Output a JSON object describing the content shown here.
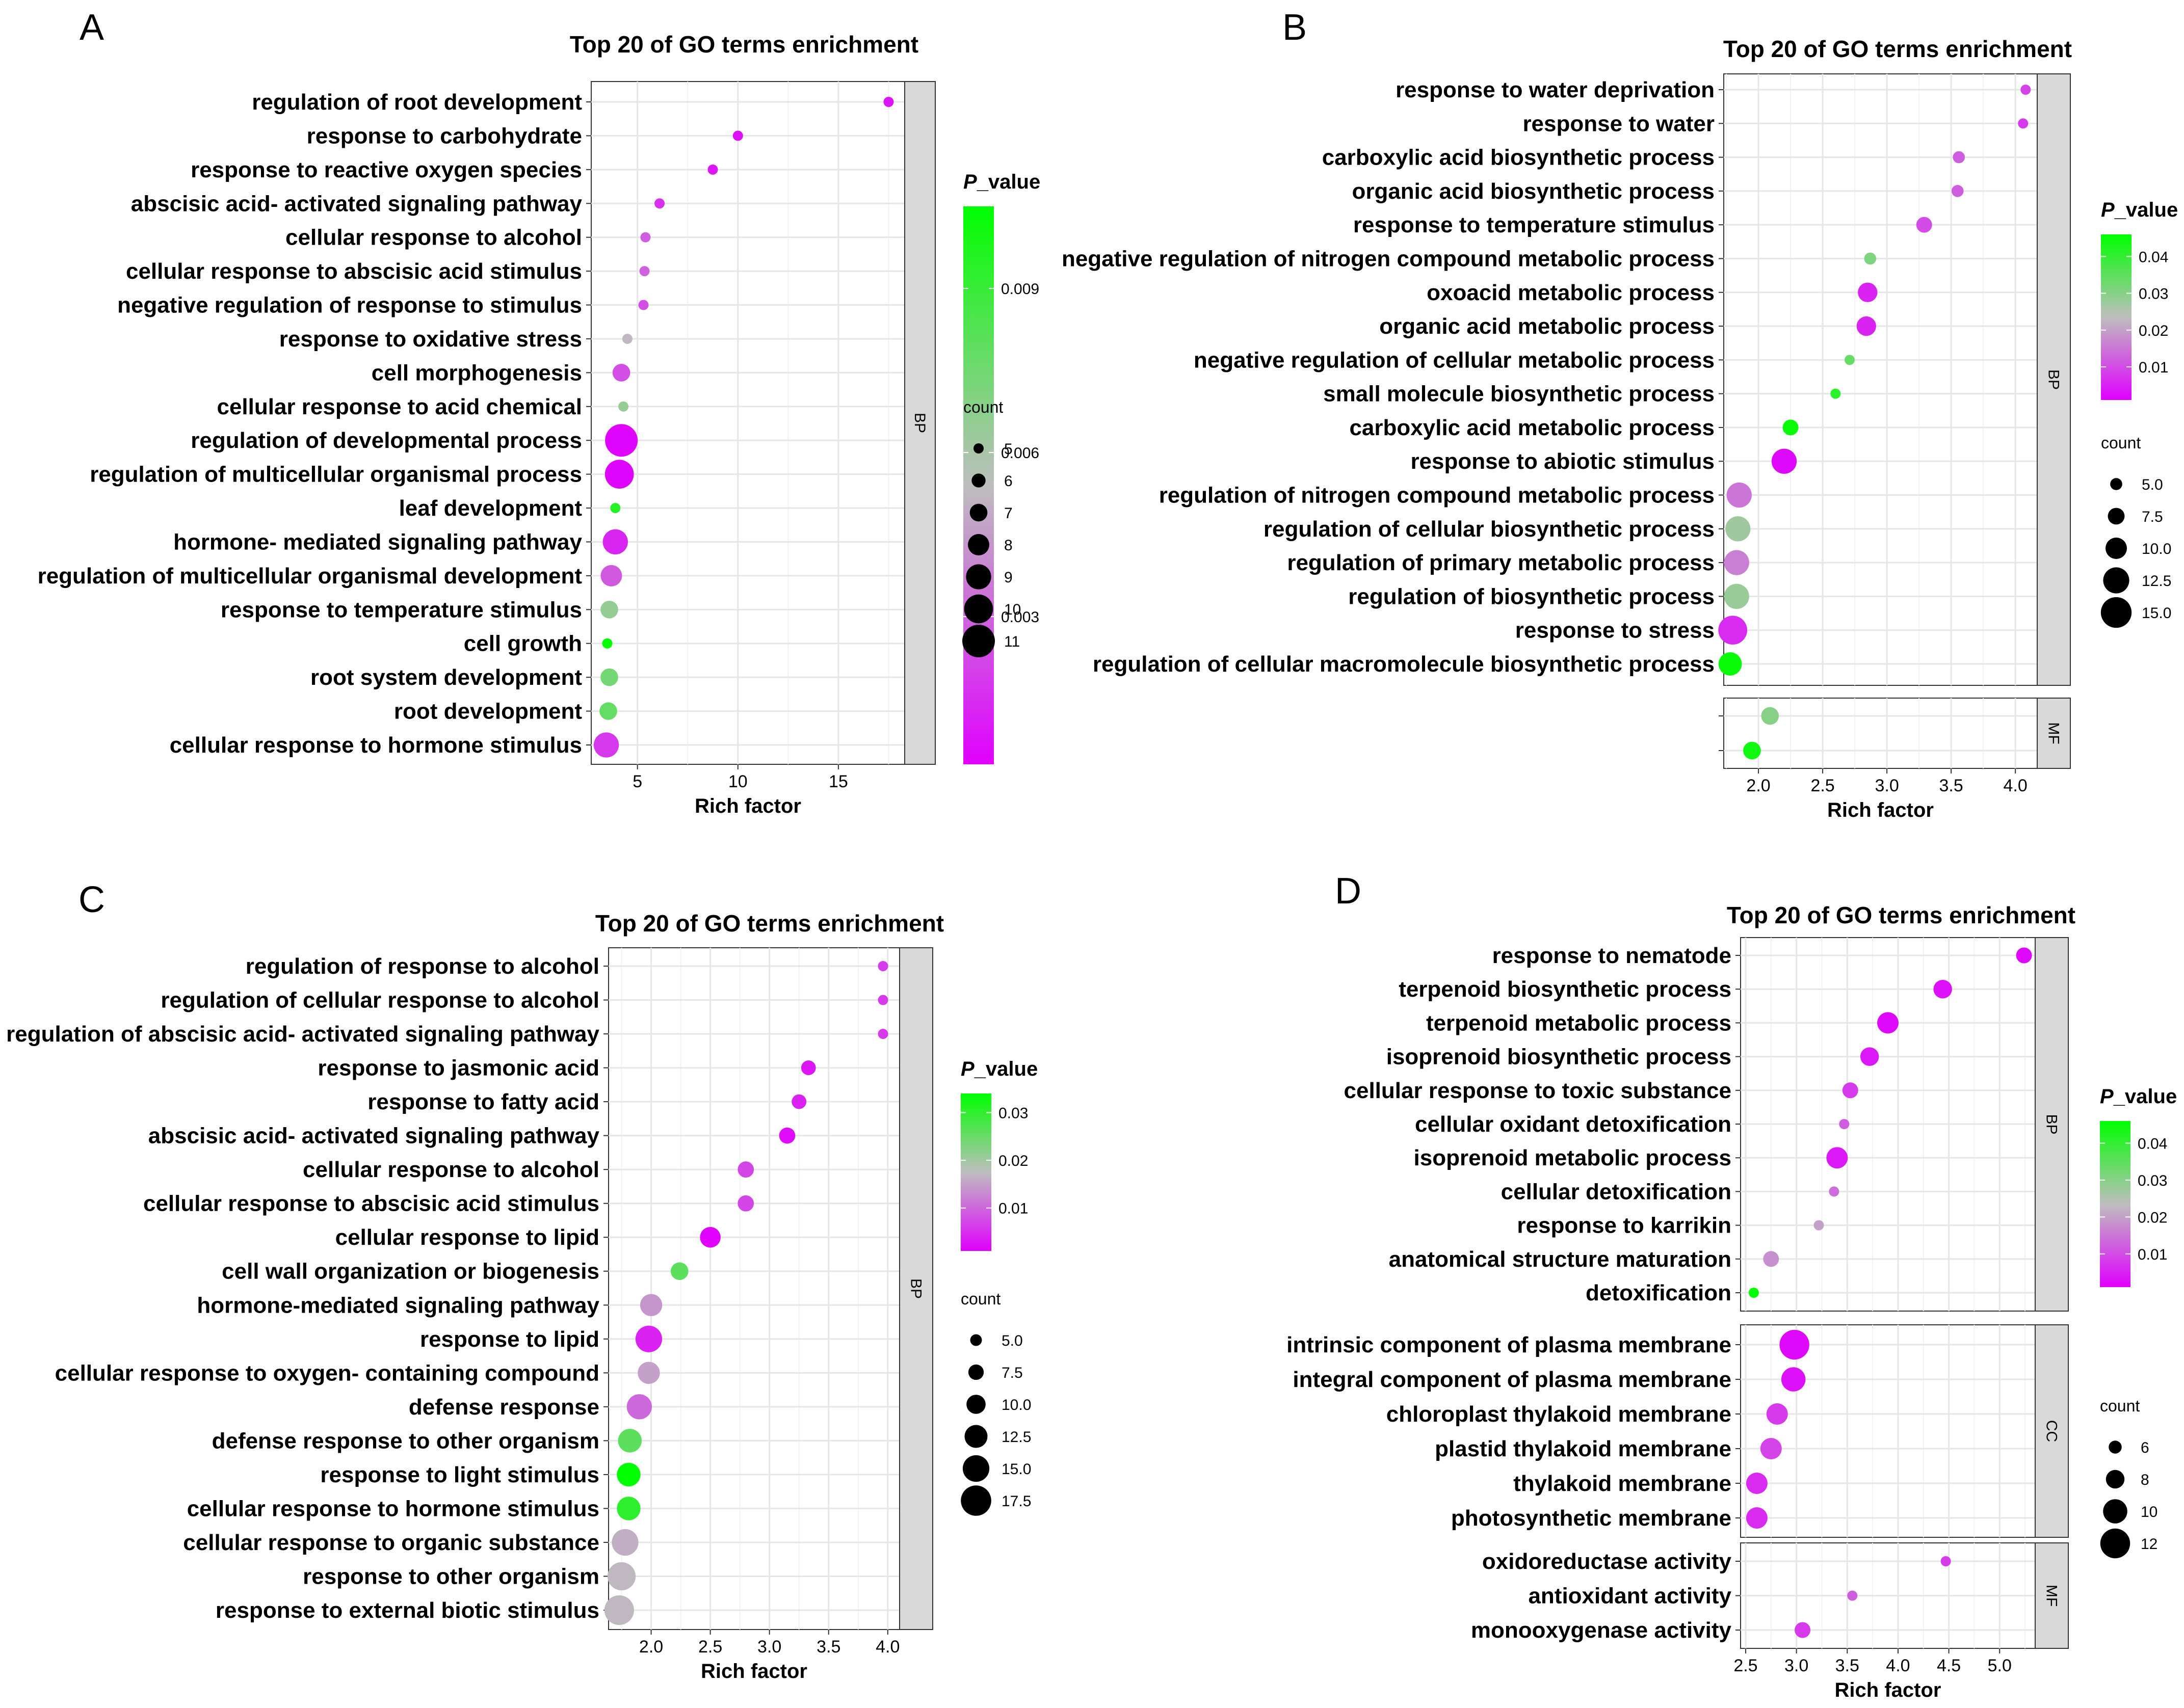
{
  "chart_data": [
    {
      "type": "scatter",
      "panel_label": "A",
      "title": "Top 20 of GO terms enrichment",
      "xlabel": "Rich factor",
      "xlim": [
        2.7,
        18.3
      ],
      "xticks": [
        "5",
        "10",
        "15"
      ],
      "color_legend": {
        "title_italic": "P",
        "title_rest": "_value",
        "ticks": [
          "0.009",
          "0.006",
          "0.003"
        ],
        "range": [
          0.0003,
          0.0105
        ],
        "tick_values": [
          0.009,
          0.006,
          0.003
        ]
      },
      "size_legend": {
        "title": "count",
        "ticks": [
          "5",
          "6",
          "7",
          "8",
          "9",
          "10",
          "11"
        ],
        "range": [
          5,
          11
        ]
      },
      "facets": [
        {
          "strip": "BP",
          "terms": [
            "regulation of root development",
            "response to carbohydrate",
            "response to reactive oxygen species",
            "abscisic acid- activated signaling pathway",
            "cellular response to alcohol",
            "cellular response to abscisic acid stimulus",
            "negative regulation of response to stimulus",
            "response to oxidative stress",
            "cell morphogenesis",
            "cellular response to acid chemical",
            "regulation of developmental process",
            "regulation of multicellular organismal process",
            "leaf development",
            "hormone- mediated signaling pathway",
            "regulation of multicellular organismal development",
            "response to temperature stimulus",
            "cell growth",
            "root system development",
            "root development",
            "cellular response to hormone stimulus"
          ],
          "rich_factor": [
            17.5,
            10.0,
            8.75,
            6.1,
            5.4,
            5.35,
            5.3,
            4.5,
            4.2,
            4.3,
            4.2,
            4.1,
            3.9,
            3.9,
            3.7,
            3.6,
            3.5,
            3.6,
            3.55,
            3.45
          ],
          "p_value": [
            0.0008,
            0.0007,
            0.0009,
            0.0016,
            0.0028,
            0.0029,
            0.0024,
            0.0052,
            0.0024,
            0.0065,
            0.0004,
            0.0004,
            0.0095,
            0.0013,
            0.0027,
            0.0065,
            0.0105,
            0.0074,
            0.0078,
            0.0018
          ],
          "count": [
            5,
            5,
            5,
            5,
            5,
            5,
            5,
            5,
            7,
            5,
            11,
            10,
            5,
            9,
            8,
            7,
            5,
            7,
            7,
            9
          ]
        }
      ]
    },
    {
      "type": "scatter",
      "panel_label": "B",
      "title": "Top 20 of GO terms enrichment",
      "xlabel": "Rich factor",
      "xlim": [
        1.73,
        4.17
      ],
      "xticks": [
        "2.0",
        "2.5",
        "3.0",
        "3.5",
        "4.0"
      ],
      "color_legend": {
        "title_italic": "P",
        "title_rest": "_value",
        "ticks": [
          "0.04",
          "0.03",
          "0.02",
          "0.01"
        ],
        "range": [
          0.001,
          0.046
        ],
        "tick_values": [
          0.04,
          0.03,
          0.02,
          0.01
        ]
      },
      "size_legend": {
        "title": "count",
        "ticks": [
          "5.0",
          "7.5",
          "10.0",
          "12.5",
          "15.0"
        ],
        "range": [
          4,
          16
        ]
      },
      "facets": [
        {
          "strip": "BP",
          "terms": [
            "response to water deprivation",
            "response to water",
            "carboxylic acid biosynthetic process",
            "organic acid biosynthetic process",
            "response to temperature stimulus",
            "negative regulation of nitrogen compound metabolic process",
            "oxoacid metabolic process",
            "organic acid metabolic process",
            "negative regulation of cellular metabolic process",
            "small molecule biosynthetic process",
            "carboxylic acid metabolic process",
            "response to abiotic stimulus",
            "regulation of nitrogen compound metabolic process",
            "regulation of cellular biosynthetic process",
            "regulation of primary metabolic process",
            "regulation of biosynthetic process",
            "response to stress",
            "regulation of cellular macromolecule biosynthetic process"
          ],
          "rich_factor": [
            4.08,
            4.06,
            3.56,
            3.55,
            3.29,
            2.87,
            2.85,
            2.84,
            2.71,
            2.6,
            2.25,
            2.2,
            1.85,
            1.84,
            1.83,
            1.83,
            1.8,
            1.78
          ],
          "p_value": [
            0.009,
            0.008,
            0.012,
            0.012,
            0.01,
            0.031,
            0.005,
            0.005,
            0.034,
            0.041,
            0.045,
            0.002,
            0.015,
            0.027,
            0.016,
            0.028,
            0.006,
            0.045
          ],
          "count": [
            4,
            4,
            5,
            5,
            7,
            5,
            9,
            9,
            4,
            4,
            7,
            12,
            12,
            12,
            12,
            12,
            14,
            11
          ]
        },
        {
          "strip": "MF",
          "terms": [
            "",
            ""
          ],
          "rich_factor": [
            2.09,
            1.95
          ],
          "p_value": [
            0.03,
            0.044
          ],
          "count": [
            8,
            8
          ]
        }
      ]
    },
    {
      "type": "scatter",
      "panel_label": "C",
      "title": "Top 20 of GO terms enrichment",
      "xlabel": "Rich factor",
      "xlim": [
        1.64,
        4.1
      ],
      "xticks": [
        "2.0",
        "2.5",
        "3.0",
        "3.5",
        "4.0"
      ],
      "color_legend": {
        "title_italic": "P",
        "title_rest": "_value",
        "ticks": [
          "0.03",
          "0.02",
          "0.01"
        ],
        "range": [
          0.001,
          0.034
        ],
        "tick_values": [
          0.03,
          0.02,
          0.01
        ]
      },
      "size_legend": {
        "title": "count",
        "ticks": [
          "5.0",
          "7.5",
          "10.0",
          "12.5",
          "15.0",
          "17.5"
        ],
        "range": [
          4,
          19
        ]
      },
      "facets": [
        {
          "strip": "BP",
          "terms": [
            "regulation of response to alcohol",
            "regulation of cellular response to alcohol",
            "regulation of abscisic acid- activated signaling pathway",
            "response to jasmonic acid",
            "response to fatty acid",
            "abscisic acid- activated signaling pathway",
            "cellular response to alcohol",
            "cellular response to abscisic acid stimulus",
            "cellular response to lipid",
            "cell wall organization or biogenesis",
            "hormone-mediated signaling pathway",
            "response to lipid",
            "cellular response to oxygen- containing compound",
            "defense response",
            "defense response to other organism",
            "response to light stimulus",
            "cellular response to hormone stimulus",
            "cellular response to organic substance",
            "response to other organism",
            "response to external biotic stimulus"
          ],
          "rich_factor": [
            3.96,
            3.96,
            3.96,
            3.33,
            3.25,
            3.15,
            2.8,
            2.8,
            2.5,
            2.24,
            2.0,
            1.98,
            1.98,
            1.9,
            1.82,
            1.81,
            1.81,
            1.78,
            1.75,
            1.73
          ],
          "p_value": [
            0.006,
            0.006,
            0.006,
            0.003,
            0.004,
            0.002,
            0.007,
            0.007,
            0.001,
            0.026,
            0.014,
            0.004,
            0.015,
            0.01,
            0.026,
            0.034,
            0.03,
            0.016,
            0.017,
            0.017
          ],
          "count": [
            4,
            4,
            4,
            7,
            7,
            8,
            8,
            8,
            11,
            9,
            12,
            15,
            12,
            14,
            13,
            13,
            13,
            15,
            16,
            17
          ]
        }
      ]
    },
    {
      "type": "scatter",
      "panel_label": "D",
      "title": "Top 20 of GO terms enrichment",
      "xlabel": "Rich factor",
      "xlim": [
        2.45,
        5.35
      ],
      "xticks": [
        "2.5",
        "3.0",
        "3.5",
        "4.0",
        "4.5",
        "5.0"
      ],
      "color_legend": {
        "title_italic": "P",
        "title_rest": "_value",
        "ticks": [
          "0.04",
          "0.03",
          "0.02",
          "0.01"
        ],
        "range": [
          0.001,
          0.046
        ],
        "tick_values": [
          0.04,
          0.03,
          0.02,
          0.01
        ]
      },
      "size_legend": {
        "title": "count",
        "ticks": [
          "6",
          "8",
          "10",
          "12"
        ],
        "range": [
          5,
          13
        ]
      },
      "facets": [
        {
          "strip": "BP",
          "terms": [
            "response to nematode",
            "terpenoid biosynthetic process",
            "terpenoid metabolic process",
            "isoprenoid biosynthetic process",
            "cellular response to toxic substance",
            "cellular oxidant detoxification",
            "isoprenoid metabolic process",
            "cellular detoxification",
            "response to karrikin",
            "anatomical structure maturation",
            "detoxification"
          ],
          "rich_factor": [
            5.24,
            4.44,
            3.9,
            3.72,
            3.53,
            3.47,
            3.4,
            3.37,
            3.22,
            2.75,
            2.58
          ],
          "p_value": [
            0.002,
            0.003,
            0.002,
            0.004,
            0.008,
            0.012,
            0.004,
            0.014,
            0.02,
            0.018,
            0.046
          ],
          "count": [
            7,
            8,
            9,
            8,
            7,
            5,
            9,
            5,
            5,
            7,
            5
          ]
        },
        {
          "strip": "CC",
          "terms": [
            "intrinsic component of plasma membrane",
            "integral component of plasma membrane",
            "chloroplast thylakoid membrane",
            "plastid thylakoid membrane",
            "thylakoid membrane",
            "photosynthetic membrane"
          ],
          "rich_factor": [
            2.98,
            2.97,
            2.81,
            2.75,
            2.61,
            2.61
          ],
          "p_value": [
            0.002,
            0.003,
            0.008,
            0.009,
            0.006,
            0.006
          ],
          "count": [
            12,
            10,
            9,
            9,
            9,
            9
          ]
        },
        {
          "strip": "MF",
          "terms": [
            "oxidoreductase activity",
            "antioxidant activity",
            "monooxygenase activity"
          ],
          "rich_factor": [
            4.47,
            3.55,
            3.06
          ],
          "p_value": [
            0.008,
            0.012,
            0.008
          ],
          "count": [
            5,
            5,
            7
          ]
        }
      ]
    }
  ]
}
